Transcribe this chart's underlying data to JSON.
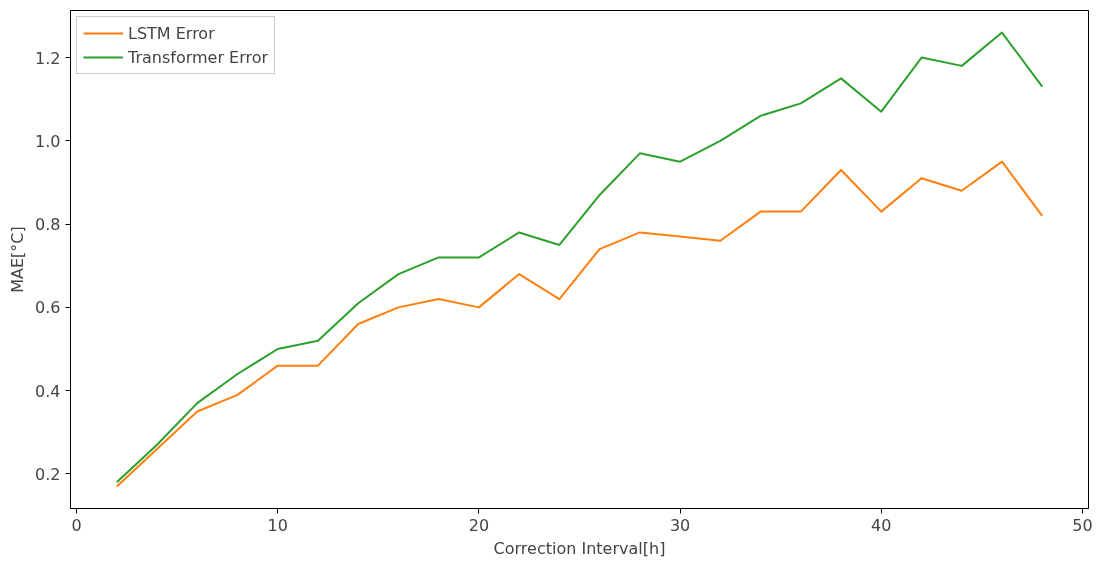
{
  "chart_data": {
    "type": "line",
    "xlabel": "Correction Interval[h]",
    "ylabel": "MAE[°C]",
    "x": [
      2,
      4,
      6,
      8,
      10,
      12,
      14,
      16,
      18,
      20,
      22,
      24,
      26,
      28,
      30,
      32,
      34,
      36,
      38,
      40,
      42,
      44,
      46,
      48
    ],
    "series": [
      {
        "name": "LSTM Error",
        "color": "#ff7f0e",
        "values": [
          0.17,
          0.26,
          0.35,
          0.39,
          0.46,
          0.46,
          0.56,
          0.6,
          0.62,
          0.6,
          0.68,
          0.62,
          0.74,
          0.78,
          0.77,
          0.76,
          0.83,
          0.83,
          0.93,
          0.83,
          0.91,
          0.88,
          0.95,
          0.82
        ]
      },
      {
        "name": "Transformer Error",
        "color": "#2ca02c",
        "values": [
          0.18,
          0.27,
          0.37,
          0.44,
          0.5,
          0.52,
          0.61,
          0.68,
          0.72,
          0.72,
          0.78,
          0.75,
          0.87,
          0.97,
          0.95,
          1.0,
          1.06,
          1.09,
          1.15,
          1.07,
          1.2,
          1.18,
          1.26,
          1.13
        ]
      }
    ],
    "xlim": [
      -0.3,
      50.3
    ],
    "ylim": [
      0.117,
      1.313
    ],
    "xticks": [
      0,
      10,
      20,
      30,
      40,
      50
    ],
    "yticks": [
      {
        "value": 0.2,
        "label": "0.2"
      },
      {
        "value": 0.4,
        "label": "0.4"
      },
      {
        "value": 0.6,
        "label": "0.6"
      },
      {
        "value": 0.8,
        "label": "0.8"
      },
      {
        "value": 1.0,
        "label": "1.0"
      },
      {
        "value": 1.2,
        "label": "1.2"
      }
    ],
    "grid": false,
    "legend": "top left"
  }
}
